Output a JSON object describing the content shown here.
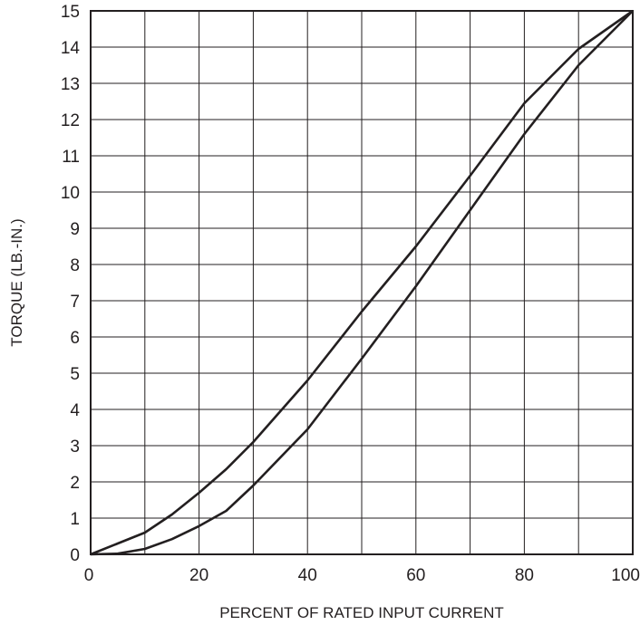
{
  "chart_data": {
    "type": "line",
    "xlabel": "PERCENT OF RATED INPUT CURRENT",
    "ylabel": "TORQUE   (LB.-IN.)",
    "xlim": [
      0,
      100
    ],
    "ylim": [
      0,
      15
    ],
    "x_ticks": [
      0,
      20,
      40,
      60,
      80,
      100
    ],
    "y_ticks": [
      0,
      1,
      2,
      3,
      4,
      5,
      6,
      7,
      8,
      9,
      10,
      11,
      12,
      13,
      14,
      15
    ],
    "x_grid": [
      0,
      10,
      20,
      30,
      40,
      50,
      60,
      70,
      80,
      90,
      100
    ],
    "grid": true,
    "series": [
      {
        "points": [
          [
            0,
            0
          ],
          [
            5,
            0.3
          ],
          [
            10,
            0.6
          ],
          [
            15,
            1.1
          ],
          [
            20,
            1.7
          ],
          [
            25,
            2.35
          ],
          [
            30,
            3.1
          ],
          [
            40,
            4.8
          ],
          [
            50,
            6.7
          ],
          [
            60,
            8.5
          ],
          [
            70,
            10.45
          ],
          [
            80,
            12.45
          ],
          [
            90,
            13.95
          ],
          [
            100,
            15
          ]
        ]
      },
      {
        "points": [
          [
            0,
            0
          ],
          [
            5,
            0.02
          ],
          [
            10,
            0.15
          ],
          [
            15,
            0.42
          ],
          [
            20,
            0.78
          ],
          [
            25,
            1.2
          ],
          [
            30,
            1.9
          ],
          [
            40,
            3.45
          ],
          [
            50,
            5.4
          ],
          [
            60,
            7.4
          ],
          [
            70,
            9.5
          ],
          [
            80,
            11.6
          ],
          [
            90,
            13.5
          ],
          [
            100,
            15
          ]
        ]
      }
    ]
  }
}
